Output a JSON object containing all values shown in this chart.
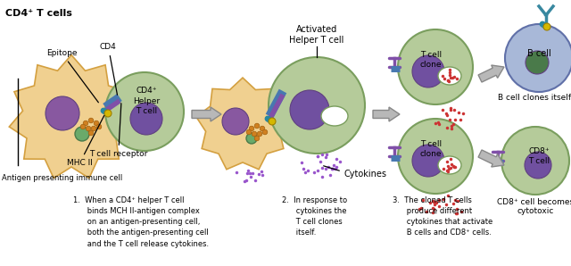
{
  "title": "CD4⁺ T cells",
  "bg_color": "#ffffff",
  "colors": {
    "green_cell": "#7a9e5e",
    "green_cell_light": "#b5cb9a",
    "orange_cell": "#d4a040",
    "orange_cell_light": "#f0d090",
    "purple_nucleus": "#7050a0",
    "blue_cell_border": "#6070a8",
    "blue_cell_light": "#a8b8d8",
    "orange_dot": "#d08020",
    "red_dot": "#cc3333",
    "arrow_fill": "#b8b8b8",
    "arrow_edge": "#888888",
    "purple_receptor": "#8050a8",
    "blue_receptor": "#4878b0",
    "green_organelle": "#4a7a4a",
    "teal_connector": "#2888a0",
    "yellow_dot": "#d4b800"
  },
  "caption1": "1.  When a CD4⁺ helper T cell\n      binds MCH II-antigen complex\n      on an antigen-presenting cell,\n      both the antigen-presenting cell\n      and the T cell release cytokines.",
  "caption2": "2.  In response to\n      cytokines the\n      T cell clones\n      itself.",
  "caption3": "3.  The cloned T cells\n      produce different\n      cytokines that activate\n      B cells and CD8⁺ cells.",
  "label_epitope": "Epitope",
  "label_cd4": "CD4",
  "label_cd4_helper": "CD4⁺\nHelper\nT cell",
  "label_tcell_receptor": "T cell receptor",
  "label_mhc2": "MHC II",
  "label_antigen_cell": "Antigen presenting immune cell",
  "label_activated": "Activated\nHelper T cell",
  "label_cytokines": "Cytokines",
  "label_tcell_clone": "T cell\nclone",
  "label_bcell": "B cell",
  "label_bcell_clones": "B cell clones itself",
  "label_cd8_tcell": "CD8⁺\nT cell",
  "label_cd8_cytotoxic": "CD8⁺ cell becomes\ncytotoxic"
}
